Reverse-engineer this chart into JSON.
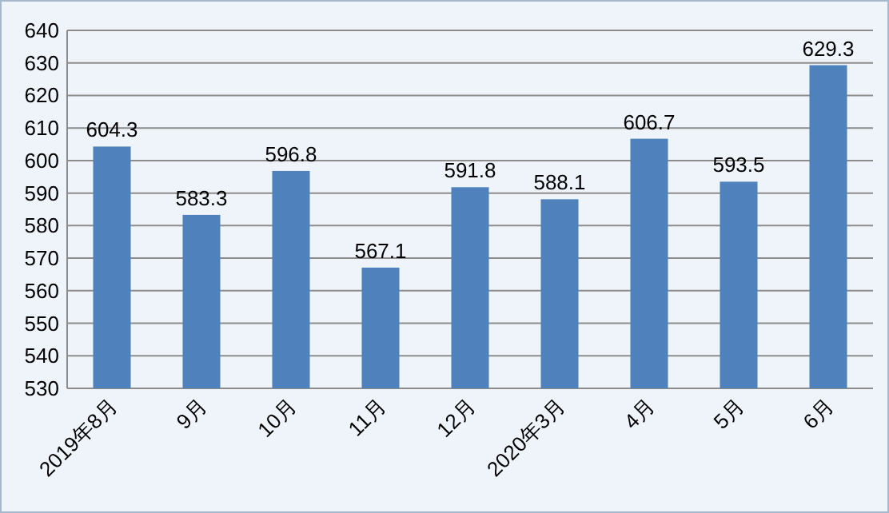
{
  "chart_data": {
    "type": "bar",
    "categories": [
      "2019年8月",
      "9月",
      "10月",
      "11月",
      "12月",
      "2020年3月",
      "4月",
      "5月",
      "6月"
    ],
    "values": [
      604.3,
      583.3,
      596.8,
      567.1,
      591.8,
      588.1,
      606.7,
      593.5,
      629.3
    ],
    "color": "#4f81bd",
    "ylim": [
      530,
      640
    ],
    "yticks": [
      530,
      540,
      550,
      560,
      570,
      580,
      590,
      600,
      610,
      620,
      630,
      640
    ],
    "grid": "y",
    "data_labels": true
  }
}
